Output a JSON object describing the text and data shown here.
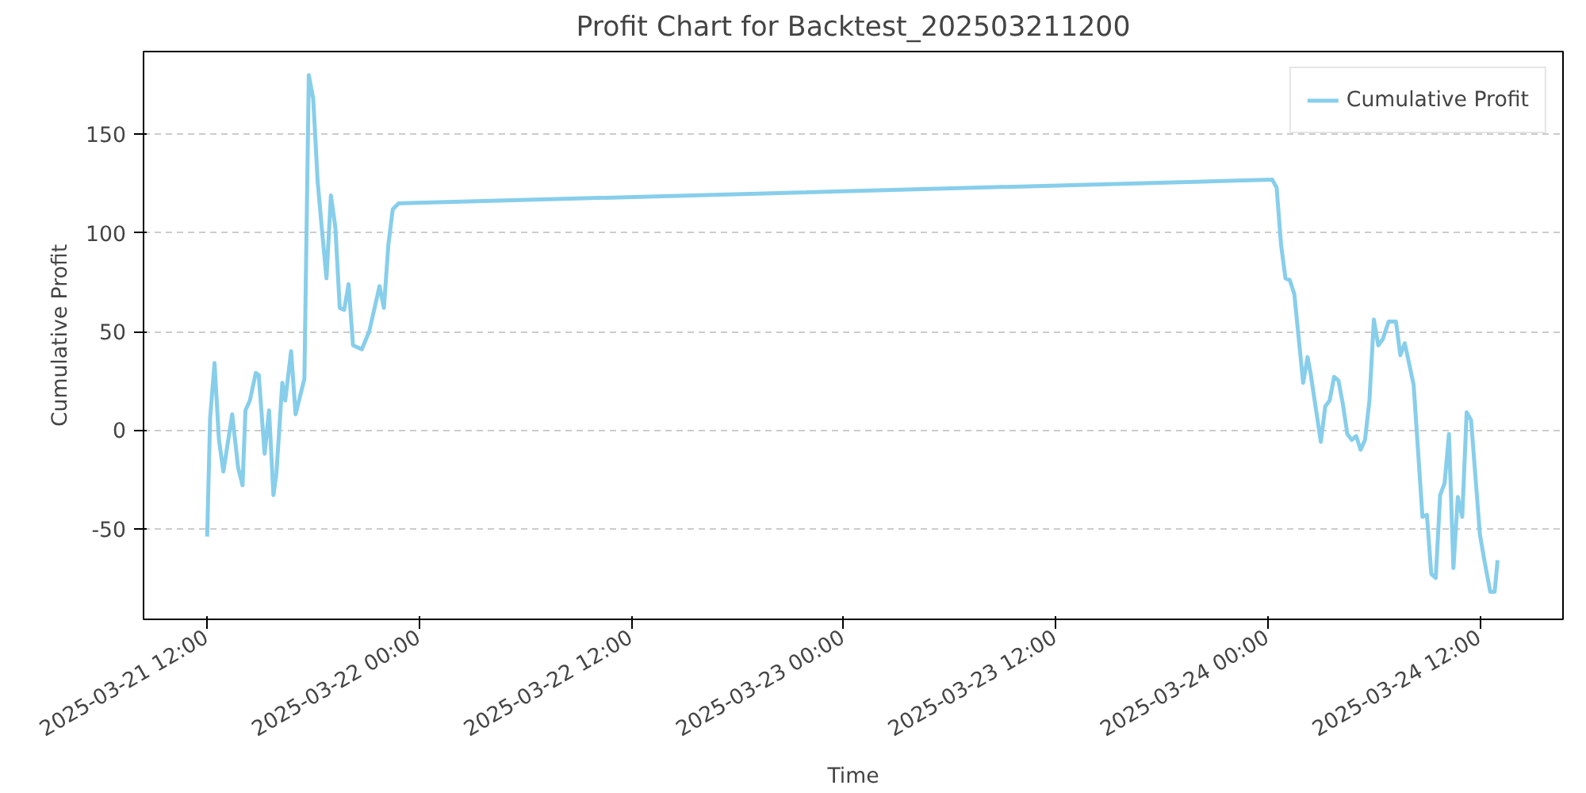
{
  "chart_data": {
    "type": "line",
    "title": "Profit Chart for Backtest_202503211200",
    "xlabel": "Time",
    "ylabel": "Cumulative Profit",
    "x": [
      "2025-03-21T12:00",
      "2025-03-21T12:10",
      "2025-03-21T12:25",
      "2025-03-21T12:40",
      "2025-03-21T12:55",
      "2025-03-21T13:25",
      "2025-03-21T13:45",
      "2025-03-21T14:00",
      "2025-03-21T14:10",
      "2025-03-21T14:25",
      "2025-03-21T14:45",
      "2025-03-21T14:55",
      "2025-03-21T15:15",
      "2025-03-21T15:30",
      "2025-03-21T15:45",
      "2025-03-21T15:55",
      "2025-03-21T16:15",
      "2025-03-21T16:25",
      "2025-03-21T16:45",
      "2025-03-21T17:00",
      "2025-03-21T17:30",
      "2025-03-21T17:45",
      "2025-03-21T18:00",
      "2025-03-21T18:15",
      "2025-03-21T18:30",
      "2025-03-21T18:45",
      "2025-03-21T19:00",
      "2025-03-21T19:15",
      "2025-03-21T19:30",
      "2025-03-21T19:45",
      "2025-03-21T20:00",
      "2025-03-21T20:15",
      "2025-03-21T20:45",
      "2025-03-21T21:10",
      "2025-03-21T21:45",
      "2025-03-21T22:00",
      "2025-03-21T22:15",
      "2025-03-21T22:30",
      "2025-03-21T22:50",
      "2025-03-24T00:15",
      "2025-03-24T00:30",
      "2025-03-24T00:45",
      "2025-03-24T01:00",
      "2025-03-24T01:15",
      "2025-03-24T01:30",
      "2025-03-24T02:00",
      "2025-03-24T02:15",
      "2025-03-24T02:25",
      "2025-03-24T03:00",
      "2025-03-24T03:15",
      "2025-03-24T03:30",
      "2025-03-24T03:45",
      "2025-03-24T04:00",
      "2025-03-24T04:15",
      "2025-03-24T04:30",
      "2025-03-24T04:45",
      "2025-03-24T05:00",
      "2025-03-24T05:15",
      "2025-03-24T05:30",
      "2025-03-24T05:45",
      "2025-03-24T06:00",
      "2025-03-24T06:15",
      "2025-03-24T06:30",
      "2025-03-24T06:50",
      "2025-03-24T07:15",
      "2025-03-24T07:30",
      "2025-03-24T07:45",
      "2025-03-24T08:15",
      "2025-03-24T08:45",
      "2025-03-24T09:00",
      "2025-03-24T09:15",
      "2025-03-24T09:30",
      "2025-03-24T09:45",
      "2025-03-24T10:00",
      "2025-03-24T10:15",
      "2025-03-24T10:30",
      "2025-03-24T10:45",
      "2025-03-24T11:00",
      "2025-03-24T11:15",
      "2025-03-24T11:30",
      "2025-03-24T12:00",
      "2025-03-24T12:15",
      "2025-03-24T12:35",
      "2025-03-24T12:50",
      "2025-03-24T13:00"
    ],
    "series": [
      {
        "name": "Cumulative Profit",
        "color": "#87ceeb",
        "values": [
          -54,
          6,
          34,
          -5,
          -21,
          8,
          -19,
          -28,
          10,
          15,
          29,
          28,
          -12,
          10,
          -33,
          -22,
          24,
          15,
          40,
          8,
          26,
          180,
          168,
          126,
          101,
          77,
          119,
          103,
          62,
          61,
          74,
          43,
          41,
          50,
          73,
          62,
          94,
          112,
          115,
          127,
          123,
          94,
          77,
          76,
          69,
          24,
          37,
          29,
          -6,
          12,
          15,
          27,
          25,
          13,
          -2,
          -5,
          -3,
          -10,
          -5,
          15,
          56,
          43,
          46,
          55,
          55,
          38,
          44,
          23,
          -44,
          -43,
          -73,
          -75,
          -33,
          -27,
          -2,
          -70,
          -34,
          -44,
          9,
          5,
          -53,
          -66,
          -82,
          -82,
          -66
        ]
      }
    ],
    "xlim": [
      "2025-03-21T08:24",
      "2025-03-24T16:42"
    ],
    "xticks": [
      {
        "value": "2025-03-21T12:00",
        "label": "2025-03-21 12:00"
      },
      {
        "value": "2025-03-22T00:00",
        "label": "2025-03-22 00:00"
      },
      {
        "value": "2025-03-22T12:00",
        "label": "2025-03-22 12:00"
      },
      {
        "value": "2025-03-23T00:00",
        "label": "2025-03-23 00:00"
      },
      {
        "value": "2025-03-23T12:00",
        "label": "2025-03-23 12:00"
      },
      {
        "value": "2025-03-24T00:00",
        "label": "2025-03-24 00:00"
      },
      {
        "value": "2025-03-24T12:00",
        "label": "2025-03-24 12:00"
      }
    ],
    "ylim": [
      -96,
      192
    ],
    "yticks": [
      -50,
      0,
      50,
      100,
      150
    ],
    "grid": "y",
    "legend": "top right",
    "line_style": "solid"
  }
}
